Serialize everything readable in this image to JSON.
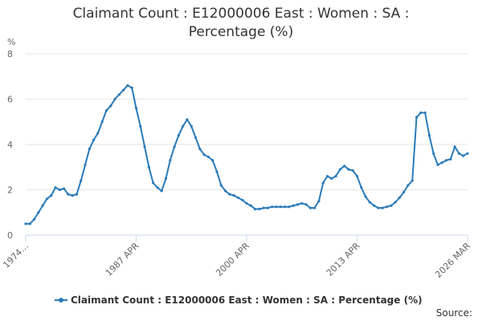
{
  "chart_data": {
    "type": "line",
    "title": "Claimant Count : E12000006 East : Women : SA : Percentage (%)",
    "y_label": "%",
    "source": "Source:",
    "categories": [
      "1974…",
      null,
      null,
      null,
      null,
      null,
      null,
      null,
      null,
      null,
      null,
      null,
      null,
      null,
      null,
      null,
      null,
      null,
      null,
      null,
      null,
      null,
      null,
      null,
      null,
      null,
      "1987 APR",
      null,
      null,
      null,
      null,
      null,
      null,
      null,
      null,
      null,
      null,
      null,
      null,
      null,
      null,
      null,
      null,
      null,
      null,
      null,
      null,
      null,
      null,
      null,
      null,
      null,
      "2000 APR",
      null,
      null,
      null,
      null,
      null,
      null,
      null,
      null,
      null,
      null,
      null,
      null,
      null,
      null,
      null,
      null,
      null,
      null,
      null,
      null,
      null,
      null,
      null,
      null,
      null,
      "2013 APR",
      null,
      null,
      null,
      null,
      null,
      null,
      null,
      null,
      null,
      null,
      null,
      null,
      null,
      null,
      null,
      null,
      null,
      null,
      null,
      null,
      null,
      null,
      null,
      null,
      null,
      "2026 MAR"
    ],
    "series": [
      {
        "name": "Claimant Count : E12000006 East : Women : SA : Percentage (%)",
        "color": "#2b7bb9",
        "values": [
          0.5,
          0.5,
          0.7,
          1.0,
          1.3,
          1.6,
          1.75,
          2.1,
          2.0,
          2.05,
          1.8,
          1.75,
          1.8,
          2.4,
          3.1,
          3.8,
          4.2,
          4.5,
          5.0,
          5.5,
          5.7,
          6.0,
          6.2,
          6.4,
          6.6,
          6.5,
          5.6,
          4.8,
          3.9,
          3.0,
          2.3,
          2.1,
          1.95,
          2.5,
          3.3,
          3.9,
          4.4,
          4.8,
          5.1,
          4.8,
          4.3,
          3.8,
          3.55,
          3.45,
          3.3,
          2.8,
          2.2,
          1.95,
          1.8,
          1.75,
          1.65,
          1.55,
          1.4,
          1.3,
          1.15,
          1.15,
          1.2,
          1.2,
          1.25,
          1.25,
          1.25,
          1.25,
          1.25,
          1.3,
          1.35,
          1.4,
          1.35,
          1.2,
          1.2,
          1.5,
          2.3,
          2.6,
          2.5,
          2.6,
          2.9,
          3.05,
          2.9,
          2.85,
          2.6,
          2.1,
          1.7,
          1.45,
          1.3,
          1.2,
          1.2,
          1.25,
          1.3,
          1.45,
          1.65,
          1.9,
          2.2,
          2.4,
          5.2,
          5.4,
          5.4,
          4.4,
          3.6,
          3.1,
          3.2,
          3.3,
          3.35,
          3.9,
          3.6,
          3.5,
          3.6
        ]
      }
    ],
    "ylim": [
      0,
      8
    ],
    "yticks": [
      0,
      2,
      4,
      6,
      8
    ],
    "grid": true,
    "legend": "bottom"
  }
}
